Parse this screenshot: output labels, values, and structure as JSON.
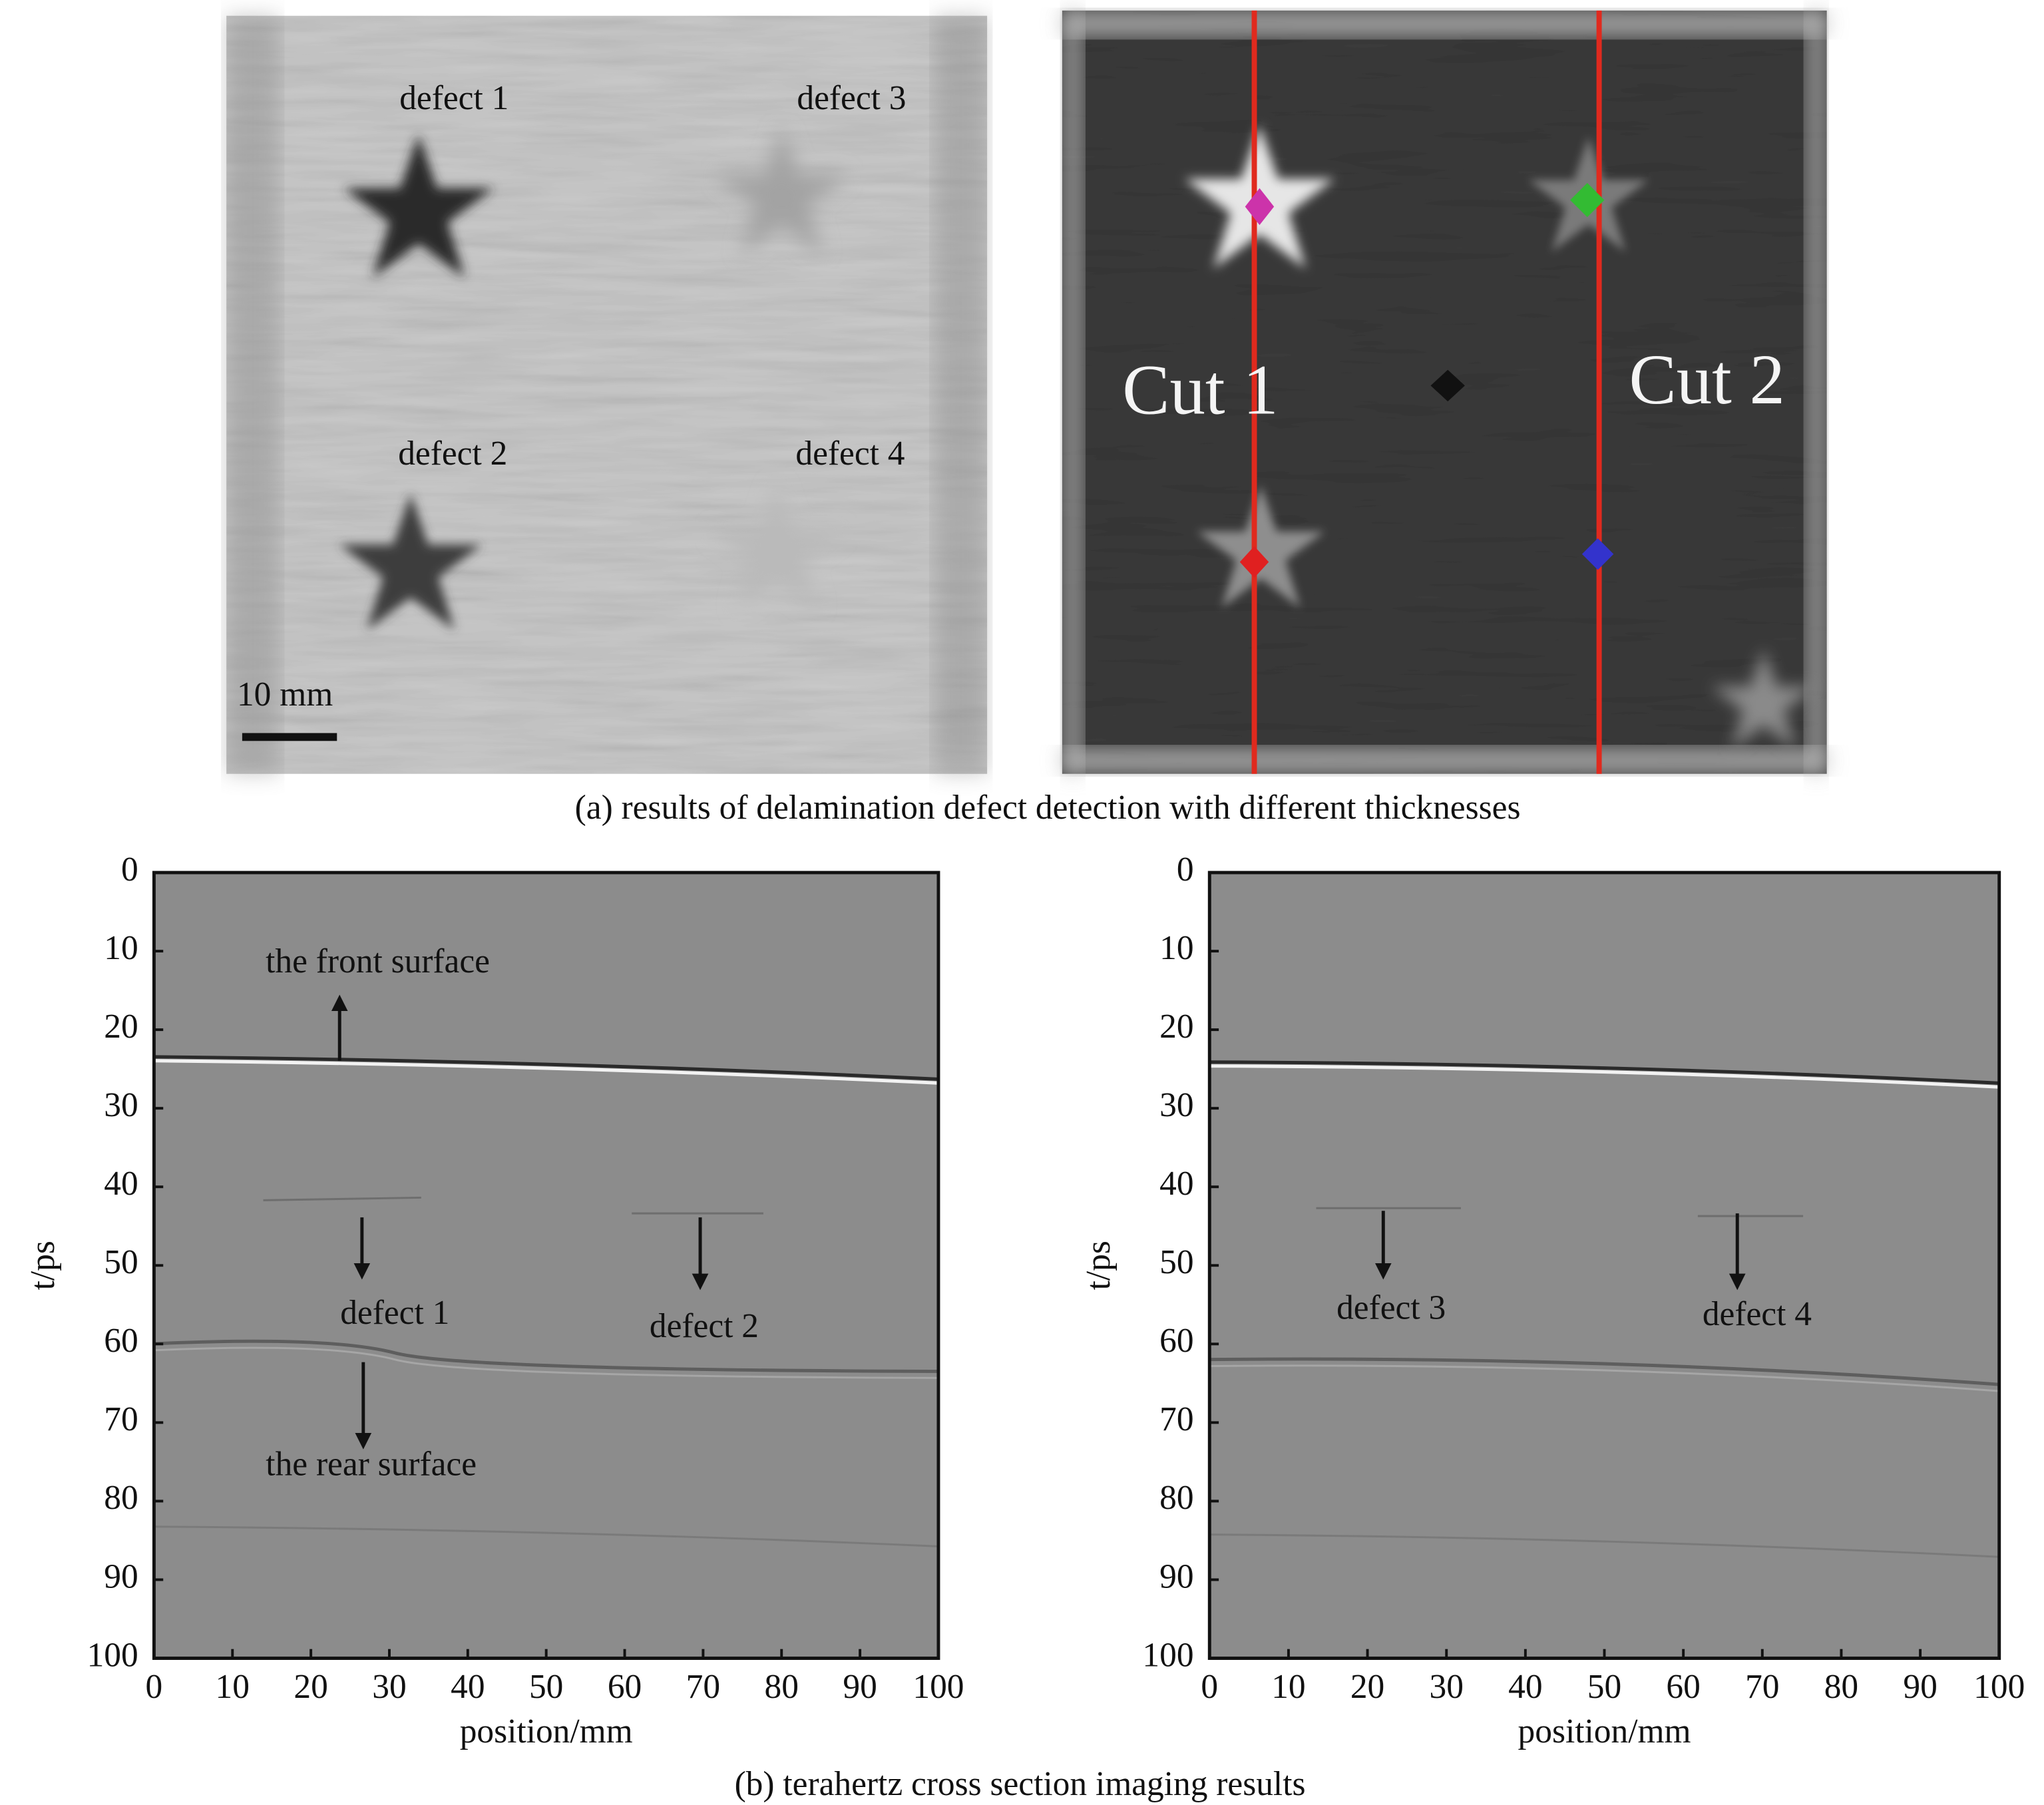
{
  "figure": {
    "image_a_left": {
      "labels": [
        "defect 1",
        "defect 3",
        "defect 2",
        "defect 4"
      ],
      "scale_bar": "10 mm"
    },
    "image_a_right": {
      "labels": [
        "Cut 1",
        "Cut 2"
      ]
    },
    "caption_a": "(a) results of delamination defect detection with different thicknesses",
    "sections": [
      {
        "xlabel": "position/mm",
        "ylabel": "t/ps",
        "xlim": [
          0,
          100
        ],
        "ylim": [
          0,
          100
        ],
        "xticks": [
          0,
          10,
          20,
          30,
          40,
          50,
          60,
          70,
          80,
          90,
          100
        ],
        "yticks": [
          0,
          10,
          20,
          30,
          40,
          50,
          60,
          70,
          80,
          90,
          100
        ],
        "annotations": [
          "the front surface",
          "defect 1",
          "defect 2",
          "the rear surface"
        ]
      },
      {
        "xlabel": "position/mm",
        "ylabel": "t/ps",
        "xlim": [
          0,
          100
        ],
        "ylim": [
          0,
          100
        ],
        "xticks": [
          0,
          10,
          20,
          30,
          40,
          50,
          60,
          70,
          80,
          90,
          100
        ],
        "yticks": [
          0,
          10,
          20,
          30,
          40,
          50,
          60,
          70,
          80,
          90,
          100
        ],
        "annotations": [
          "defect 3",
          "defect 4"
        ]
      }
    ],
    "caption_b": "(b) terahertz cross section imaging results"
  }
}
